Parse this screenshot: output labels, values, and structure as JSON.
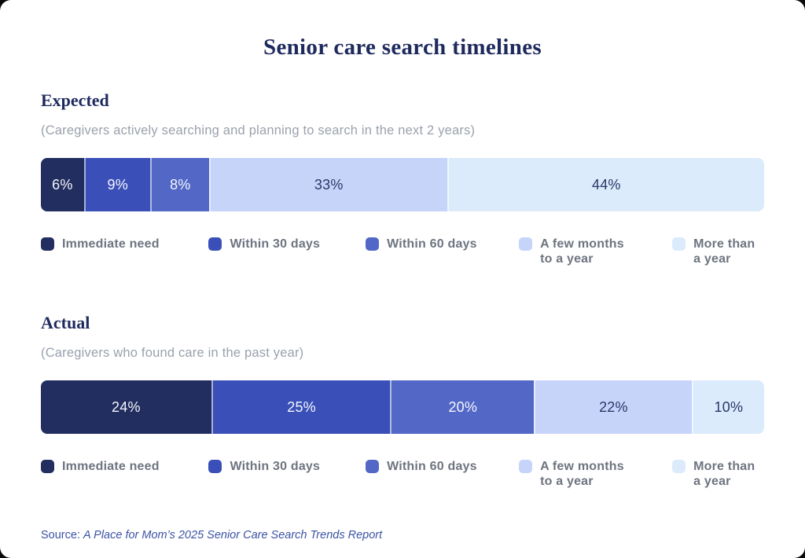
{
  "title": "Senior care search timelines",
  "source": {
    "prefix": "Source: ",
    "text": "A Place for Mom’s 2025 Senior Care Search Trends Report"
  },
  "colors": {
    "segments": [
      "#222e5f",
      "#3a50b8",
      "#5368c6",
      "#c7d4fa",
      "#dcebfb"
    ],
    "label_on_dark": "#f5f7fd",
    "label_on_light": "#2a3768",
    "heading": "#1e2a5e",
    "subtitle_gray": "#9aa1ac",
    "legend_text": "#6e7480",
    "source_blue": "#3b53a4"
  },
  "legend": {
    "labels": [
      "Immediate need",
      "Within 30 days",
      "Within 60 days",
      "A few months\nto a year",
      "More than\na year"
    ]
  },
  "chart_data": [
    {
      "type": "bar",
      "variant": "stacked-horizontal",
      "title": "Expected",
      "subtitle": "(Caregivers actively searching and planning to search in the next 2 years)",
      "categories": [
        "Immediate need",
        "Within 30 days",
        "Within 60 days",
        "A few months to a year",
        "More than a year"
      ],
      "values": [
        6,
        9,
        8,
        33,
        44
      ],
      "unit": "%",
      "legend_position": "bottom"
    },
    {
      "type": "bar",
      "variant": "stacked-horizontal",
      "title": "Actual",
      "subtitle": "(Caregivers who found care in the past year)",
      "categories": [
        "Immediate need",
        "Within 30 days",
        "Within 60 days",
        "A few months to a year",
        "More than a year"
      ],
      "values": [
        24,
        25,
        20,
        22,
        10
      ],
      "unit": "%",
      "legend_position": "bottom"
    }
  ]
}
